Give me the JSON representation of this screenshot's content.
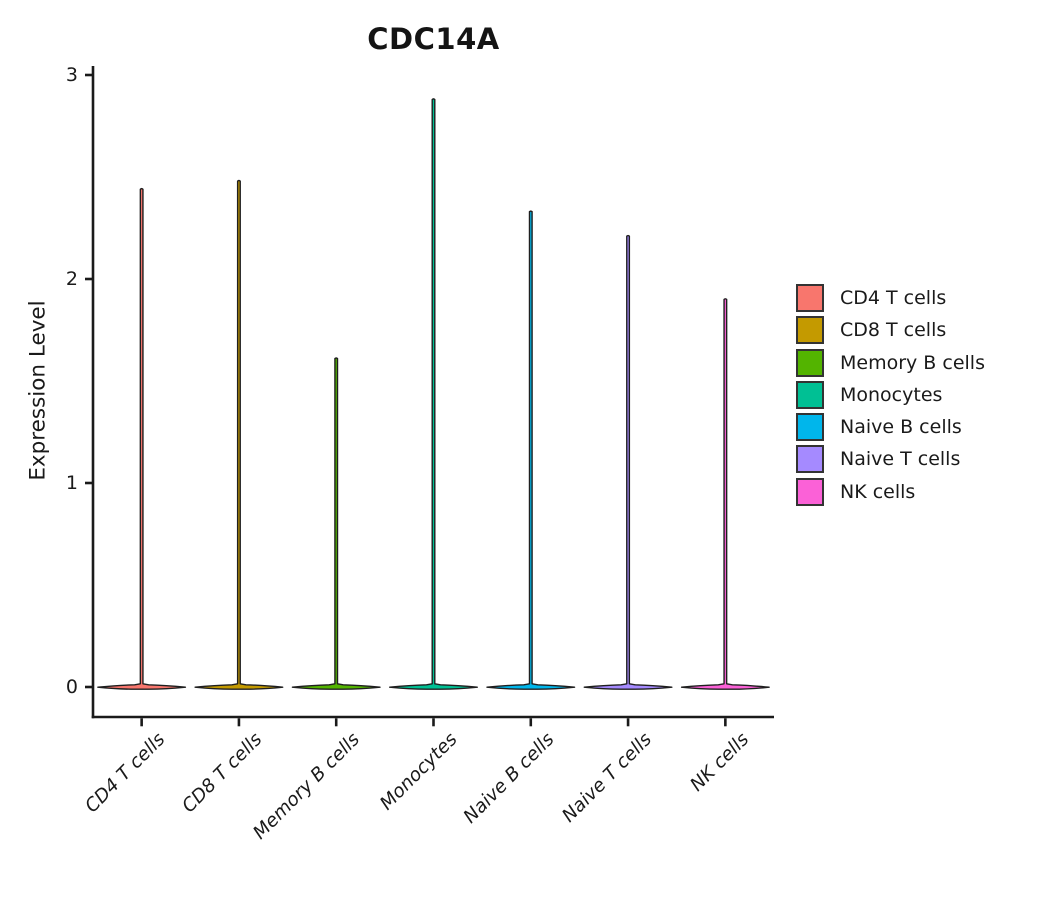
{
  "chart_data": {
    "type": "violin",
    "title": "CDC14A",
    "xlabel": "",
    "ylabel": "Expression Level",
    "ylim": [
      0,
      3
    ],
    "yticks": [
      "0",
      "1",
      "2",
      "3"
    ],
    "legend_position": "right",
    "grid": false,
    "categories": [
      "CD4 T cells",
      "CD8 T cells",
      "Memory B cells",
      "Monocytes",
      "Naive B cells",
      "Naive T cells",
      "NK cells"
    ],
    "series": [
      {
        "name": "CD4 T cells",
        "color": "#F8766D",
        "peak_expression": 2.44,
        "mass_at": 0
      },
      {
        "name": "CD8 T cells",
        "color": "#C49A00",
        "peak_expression": 2.48,
        "mass_at": 0
      },
      {
        "name": "Memory B cells",
        "color": "#53B400",
        "peak_expression": 1.61,
        "mass_at": 0
      },
      {
        "name": "Monocytes",
        "color": "#00C094",
        "peak_expression": 2.88,
        "mass_at": 0
      },
      {
        "name": "Naive B cells",
        "color": "#00B6EB",
        "peak_expression": 2.33,
        "mass_at": 0
      },
      {
        "name": "Naive T cells",
        "color": "#A58AFF",
        "peak_expression": 2.21,
        "mass_at": 0
      },
      {
        "name": "NK cells",
        "color": "#FB61D7",
        "peak_expression": 1.9,
        "mass_at": 0
      }
    ],
    "violin_outline_color": "#1f1f1f",
    "axis_color": "#1a1a1a"
  }
}
